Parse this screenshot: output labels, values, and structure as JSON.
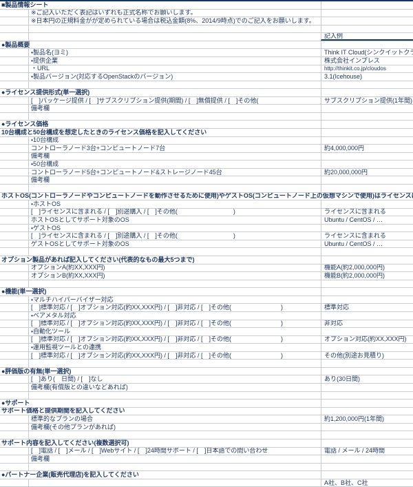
{
  "meta": {
    "title": "製品情報シート"
  },
  "colors": {
    "text": "#1f3864",
    "grid": "#c8ccd2",
    "thick_border": "#16365c",
    "background": "#ffffff"
  },
  "columns": {
    "example_header": "記入例"
  },
  "rows": [
    {
      "kind": "section",
      "b": "■製品情報シート",
      "c": ""
    },
    {
      "kind": "item",
      "b": "※ご記入いただく表記はいずれも正式名称でお願いします。",
      "c": ""
    },
    {
      "kind": "item",
      "b": "※日本円の正規料金がが定められている場合は税込金額(8%、2014/9時点)でのご記入をお願いします。",
      "c": ""
    },
    {
      "kind": "empty",
      "b": "",
      "c": ""
    },
    {
      "kind": "example",
      "b": "",
      "c": "記入例"
    },
    {
      "kind": "section",
      "b": "●製品概要",
      "c": ""
    },
    {
      "kind": "item",
      "b": "・製品名(ヨミ)",
      "c": "Think IT Cloud(シンクイットクラウド)"
    },
    {
      "kind": "item",
      "b": "・提供企業",
      "c": "株式会社インプレス"
    },
    {
      "kind": "item",
      "b": "・URL",
      "c": "http://thinkit.co.jp/cloudos",
      "c_small": true
    },
    {
      "kind": "item",
      "b": "・製品バージョン(対応するOpenStackのバージョン)",
      "c": "3.1(Icehouse)"
    },
    {
      "kind": "empty",
      "b": "",
      "c": ""
    },
    {
      "kind": "section",
      "b": "●ライセンス提供形式(単一選択)",
      "c": ""
    },
    {
      "kind": "item",
      "b": "[　]パッケージ提供 / [　]サブスクリプション提供(期間) / [　]無償提供 / [　]その他(　　　　　　　　　　)",
      "c": "サブスクリプション提供(1年間) / 無償提供"
    },
    {
      "kind": "item",
      "b": "備考欄",
      "c": ""
    },
    {
      "kind": "empty",
      "b": "",
      "c": ""
    },
    {
      "kind": "section",
      "b": "●ライセンス価格",
      "c": ""
    },
    {
      "kind": "section",
      "b": "10台構成と50台構成を想定したときのライセンス価格を記入してください",
      "c": ""
    },
    {
      "kind": "item",
      "b": "・10台構成",
      "c": ""
    },
    {
      "kind": "item",
      "b": "コントローラノード3台+コンピュートノード7台",
      "c": "約4,000,000円"
    },
    {
      "kind": "item",
      "b": "備考欄",
      "c": ""
    },
    {
      "kind": "item",
      "b": "・50台構成",
      "c": ""
    },
    {
      "kind": "item",
      "b": "コントローラノード5台+コンピュートノード&ストレージノード45台",
      "c": "約20,000,000円"
    },
    {
      "kind": "item",
      "b": "備考欄",
      "c": ""
    },
    {
      "kind": "empty",
      "b": "",
      "c": ""
    },
    {
      "kind": "full",
      "b": "ホストOS(コントローラノードやコンピュートノードを動作させるために使用)やゲストOS(コンピュートノード上の仮想マシンで使用)はライセンスに含まれますか?(単一選択)",
      "c": ""
    },
    {
      "kind": "item",
      "b": "・ホストOS",
      "c": ""
    },
    {
      "kind": "item",
      "b": "[　]ライセンスに含まれる / [　]別途購入 / [　]その他(　　　　　　　　　)",
      "c": "ライセンスに含まれる"
    },
    {
      "kind": "item",
      "b": "ホストOSとしてサポート対象のOS",
      "c": "Ubuntu / CentOS / …"
    },
    {
      "kind": "item",
      "b": "・ゲストOS",
      "c": ""
    },
    {
      "kind": "item",
      "b": "[　]ライセンスに含まれる / [　]別途購入 / [　]その他(　　　　　　　　　)",
      "c": "ライセンスに含まれる"
    },
    {
      "kind": "item",
      "b": "ゲストOSとしてサポート対象のOS",
      "c": "Ubuntu / CentOS / …"
    },
    {
      "kind": "empty",
      "b": "",
      "c": ""
    },
    {
      "kind": "section",
      "b": "オプション製品があれば記入してください(代表的なもの最大5つまで)",
      "c": ""
    },
    {
      "kind": "item",
      "b": "オプションA(約XX,XXX円)",
      "c": "機能A(約2,000,000円)"
    },
    {
      "kind": "item",
      "b": "オプションB(約XX,XXX円)",
      "c": "機能B(約2,000,000円)"
    },
    {
      "kind": "empty",
      "b": "",
      "c": ""
    },
    {
      "kind": "section",
      "b": "●機能(単一選択)",
      "c": ""
    },
    {
      "kind": "item",
      "b": "・マルチハイパーバイザー対応",
      "c": ""
    },
    {
      "kind": "item",
      "b": "[　]標準対応 / [　]オプション対応(約XX,XXX円) / [　]非対応 / [　]その他(　　　　　　　　)",
      "c": "標準対応"
    },
    {
      "kind": "item",
      "b": "・ベアメタル対応",
      "c": ""
    },
    {
      "kind": "item",
      "b": "[　]標準対応 / [　]オプション対応(約XX,XXX円) / [　]非対応 / [　]その他(　　　　　　　　)",
      "c": "非対応"
    },
    {
      "kind": "item",
      "b": "・自動化ツール",
      "c": ""
    },
    {
      "kind": "item",
      "b": "[　]標準対応 / [　]オプション対応(約XX,XXX円) / [　]非対応 / [　]その他(　　　　　　　　)",
      "c": "オプション対応(約XX,XXX円)"
    },
    {
      "kind": "item",
      "b": "・運用監視ツールとの連携",
      "c": ""
    },
    {
      "kind": "item",
      "b": "[　]標準対応 / [　]オプション対応(約XX,XXX円) / [　]非対応 / [　]その他(　　　　　　　　)",
      "c": "その他(別途お見積り)"
    },
    {
      "kind": "empty",
      "b": "",
      "c": ""
    },
    {
      "kind": "section",
      "b": "●評価版の有無(単一選択)",
      "c": ""
    },
    {
      "kind": "item",
      "b": "[　]あり(　日間) / [　]なし",
      "c": "あり(30日間)"
    },
    {
      "kind": "item",
      "b": "備考欄(有償版との違いなどあれば)",
      "c": ""
    },
    {
      "kind": "empty",
      "b": "",
      "c": ""
    },
    {
      "kind": "section",
      "b": "●サポート",
      "c": ""
    },
    {
      "kind": "section",
      "b": "サポート価格と提供期間を記入してください",
      "c": ""
    },
    {
      "kind": "item",
      "b": "標準的なプランの場合",
      "c": "約1,200,000円(1年間)"
    },
    {
      "kind": "item",
      "b": "備考欄(その他プランがあれば)",
      "c": ""
    },
    {
      "kind": "empty",
      "b": "",
      "c": ""
    },
    {
      "kind": "section",
      "b": "サポート内容を記入してください(複数選択可)",
      "c": ""
    },
    {
      "kind": "item",
      "b": "[　]電話 / [　]メール / [　]Webサイト / [　]24時間サポート / [　]日本語での問い合わせ",
      "c": "電話 / メール / 24時間"
    },
    {
      "kind": "item",
      "b": "備考欄",
      "c": ""
    },
    {
      "kind": "empty",
      "b": "",
      "c": ""
    },
    {
      "kind": "section",
      "b": "●パートナー企業(販売代理店)を記入してください",
      "c": ""
    },
    {
      "kind": "item",
      "b": "",
      "c": "A社、B社、C社"
    }
  ]
}
